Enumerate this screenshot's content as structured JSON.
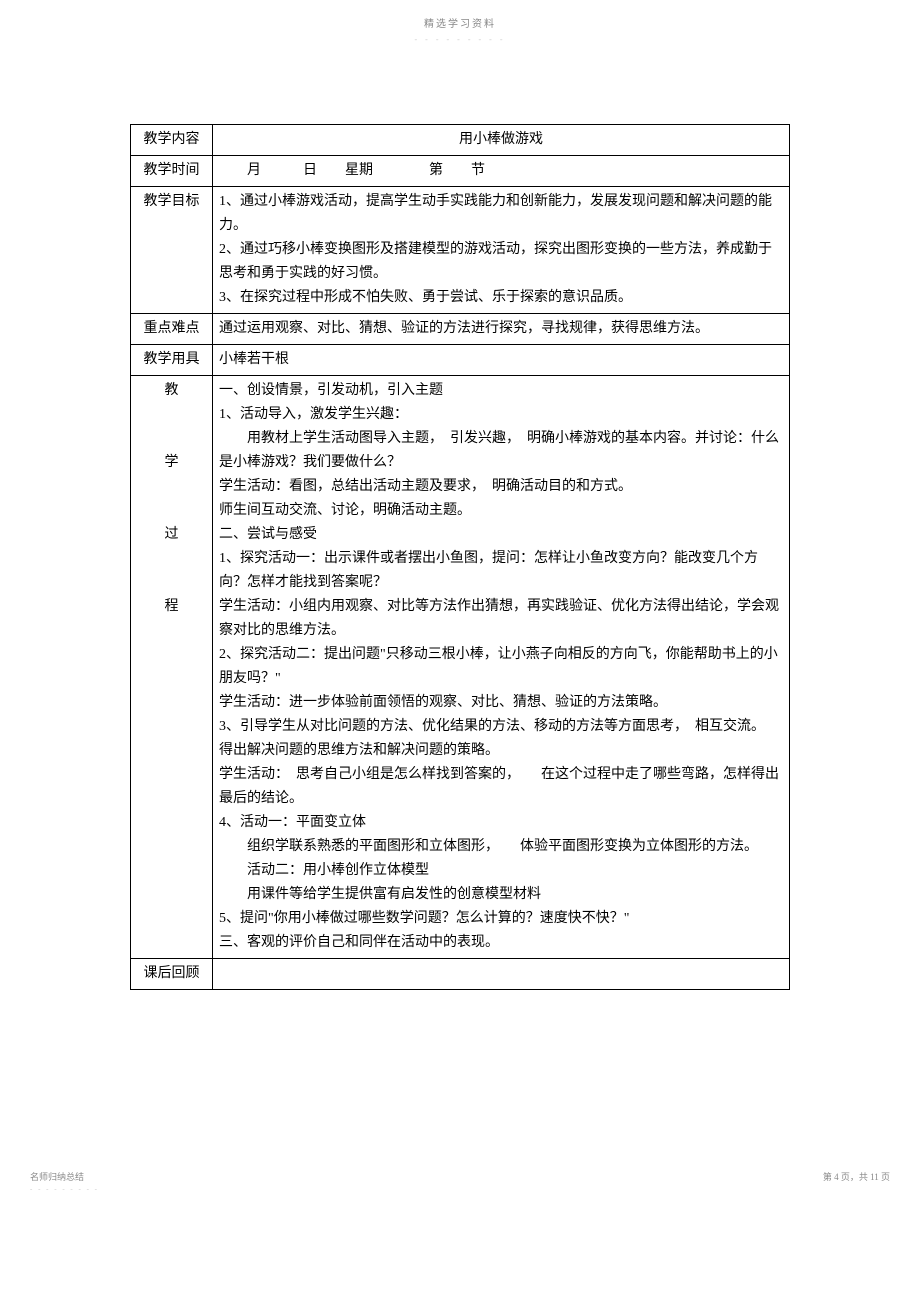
{
  "header": {
    "title": "精选学习资料",
    "dashes": "- - - - - - - - -"
  },
  "table": {
    "rows": {
      "content_label": "教学内容",
      "content_value": "用小棒做游戏",
      "time_label": "教学时间",
      "time_value": "月　　　日　　星期　　　　第　　节",
      "goal_label": "教学目标",
      "goal_value": "1、通过小棒游戏活动，提高学生动手实践能力和创新能力，发展发现问题和解决问题的能力。\n2、通过巧移小棒变换图形及搭建模型的游戏活动，探究出图形变换的一些方法，养成勤于思考和勇于实践的好习惯。\n3、在探究过程中形成不怕失败、勇于尝试、乐于探索的意识品质。",
      "keypoint_label": "重点难点",
      "keypoint_value": "通过运用观察、对比、猜想、验证的方法进行探究，寻找规律，获得思维方法。",
      "tools_label": "教学用具",
      "tools_value": "小棒若干根",
      "process_label_1": "教",
      "process_label_2": "学",
      "process_label_3": "过",
      "process_label_4": "程",
      "process_value": {
        "p1": "一、创设情景，引发动机，引入主题",
        "p2": "1、活动导入，激发学生兴趣：",
        "p3": "　　用教材上学生活动图导入主题，　引发兴趣，　明确小棒游戏的基本内容。并讨论：什么是小棒游戏？我们要做什么？",
        "p4": "学生活动：看图，总结出活动主题及要求，　明确活动目的和方式。",
        "p5": "师生间互动交流、讨论，明确活动主题。",
        "p6": "二、尝试与感受",
        "p7": "1、探究活动一：出示课件或者摆出小鱼图，提问：怎样让小鱼改变方向？能改变几个方向？怎样才能找到答案呢？",
        "p8": "学生活动：小组内用观察、对比等方法作出猜想，再实践验证、优化方法得出结论，学会观察对比的思维方法。",
        "p9": "2、探究活动二：提出问题\"只移动三根小棒，让小燕子向相反的方向飞，你能帮助书上的小朋友吗？\"",
        "p10": "学生活动：进一步体验前面领悟的观察、对比、猜想、验证的方法策略。",
        "p11": "3、引导学生从对比问题的方法、优化结果的方法、移动的方法等方面思考，　相互交流。　得出解决问题的思维方法和解决问题的策略。",
        "p12": "学生活动：　思考自己小组是怎么样找到答案的，　　在这个过程中走了哪些弯路，怎样得出最后的结论。",
        "p13": "4、活动一：平面变立体",
        "p14": "　　组织学联系熟悉的平面图形和立体图形，　　体验平面图形变换为立体图形的方法。",
        "p15": "　　活动二：用小棒创作立体模型",
        "p16": "　　用课件等给学生提供富有启发性的创意模型材料",
        "p17": "5、提问\"你用小棒做过哪些数学问题？怎么计算的？速度快不快？\"",
        "p18": "三、客观的评价自己和同伴在活动中的表现。"
      },
      "review_label": "课后回顾",
      "review_value": ""
    }
  },
  "footer": {
    "left": "名师归纳总结",
    "left_sub": "- - - - - - - - -",
    "right": "第 4 页，共 11 页"
  }
}
